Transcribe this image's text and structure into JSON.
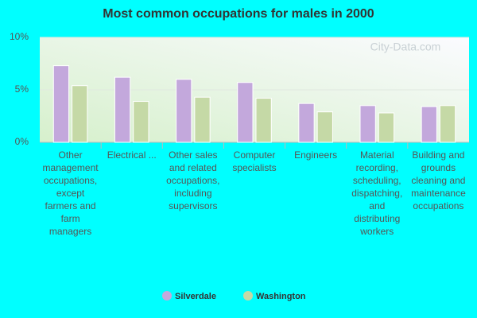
{
  "chart_data": {
    "type": "bar",
    "title": "Most common occupations for males in 2000",
    "watermark": "City-Data.com",
    "categories": [
      "Other management occupations, except farmers and farm managers",
      "Electrical ...",
      "Other sales and related occupations, including supervisors",
      "Computer specialists",
      "Engineers",
      "Material recording, scheduling, dispatching, and distributing workers",
      "Building and grounds cleaning and maintenance occupations"
    ],
    "series": [
      {
        "name": "Silverdale",
        "color": "#c3a8dc",
        "values": [
          7.3,
          6.2,
          6.0,
          5.7,
          3.7,
          3.5,
          3.4
        ]
      },
      {
        "name": "Washington",
        "color": "#c5d9a6",
        "values": [
          5.4,
          3.9,
          4.3,
          4.2,
          2.9,
          2.8,
          3.5
        ]
      }
    ],
    "ylim": [
      0,
      10
    ],
    "yticks": [
      {
        "value": 0,
        "label": "0%"
      },
      {
        "value": 5,
        "label": "5%"
      },
      {
        "value": 10,
        "label": "10%"
      }
    ],
    "grid": true,
    "legend": "bottom"
  }
}
